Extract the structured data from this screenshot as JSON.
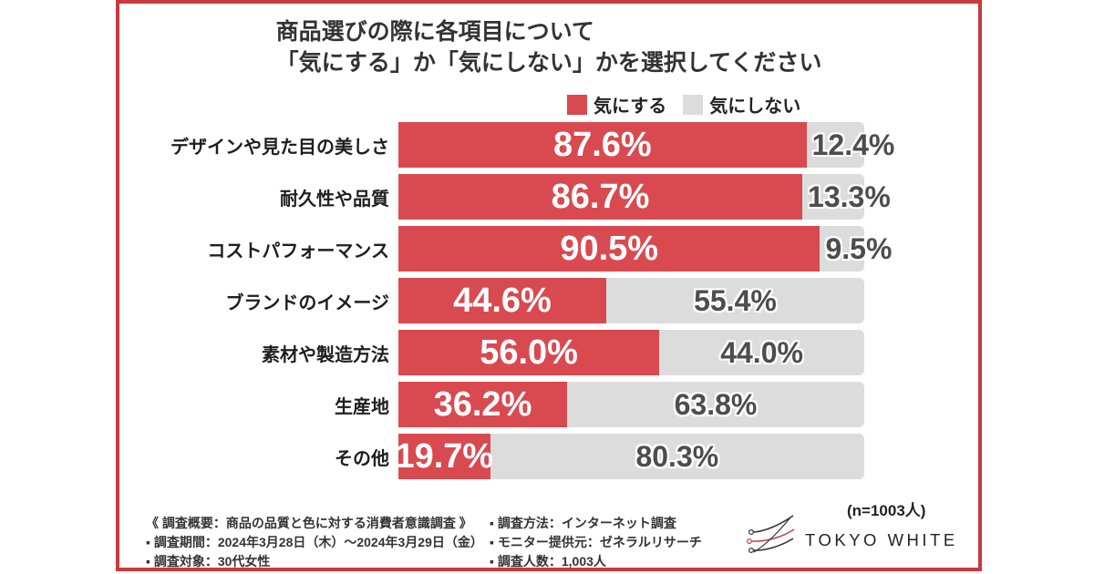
{
  "title": {
    "line1": "商品選びの際に各項目について",
    "line2": "「気にする」か「気にしない」かを選択してください"
  },
  "legend": {
    "care": {
      "label": "気にする",
      "color": "#d94a50"
    },
    "not_care": {
      "label": "気にしない",
      "color": "#dcdcdc"
    }
  },
  "chart_data": {
    "type": "bar",
    "stacked": true,
    "orientation": "horizontal",
    "categories": [
      "デザインや見た目の美しさ",
      "耐久性や品質",
      "コストパフォーマンス",
      "ブランドのイメージ",
      "素材や製造方法",
      "生産地",
      "その他"
    ],
    "series": [
      {
        "name": "気にする",
        "color": "#d94a50",
        "values": [
          87.6,
          86.7,
          90.5,
          44.6,
          56.0,
          36.2,
          19.7
        ],
        "labels": [
          "87.6%",
          "86.7%",
          "90.5%",
          "44.6%",
          "56.0%",
          "36.2%",
          "19.7%"
        ]
      },
      {
        "name": "気にしない",
        "color": "#dcdcdc",
        "values": [
          12.4,
          13.3,
          9.5,
          55.4,
          44.0,
          63.8,
          80.3
        ],
        "labels": [
          "12.4%",
          "13.3%",
          "9.5%",
          "55.4%",
          "44.0%",
          "63.8%",
          "80.3%"
        ]
      }
    ],
    "xlim": [
      0,
      100
    ],
    "legend_position": "top",
    "grid": false
  },
  "footer": {
    "left_lines": [
      "《 調査概要：商品の品質と色に対する消費者意識調査 》",
      "▪ 調査期間：2024年3月28日（木）〜2024年3月29日（金）",
      "▪ 調査対象：30代女性"
    ],
    "right_lines": [
      "▪ 調査方法：インターネット調査",
      "▪ モニター提供元：ゼネラルリサーチ",
      "▪ 調査人数：1,003人"
    ],
    "n_label": "(n=1003人)",
    "logo_text": "TOKYO WHITE"
  }
}
